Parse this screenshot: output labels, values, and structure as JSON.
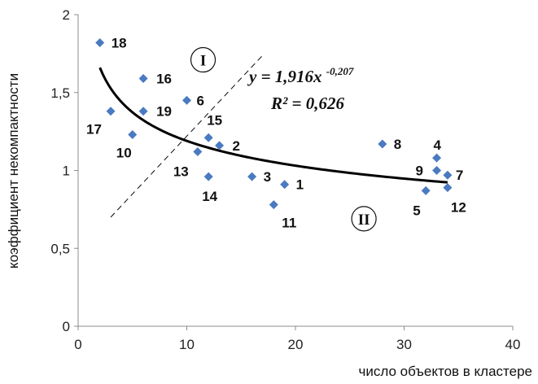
{
  "chart_data": {
    "type": "scatter",
    "xlabel": "число объектов в кластере",
    "ylabel": "коэффициент некомпактности",
    "xlim": [
      0,
      40
    ],
    "ylim": [
      0,
      2
    ],
    "x_ticks": [
      "0",
      "10",
      "20",
      "30",
      "40"
    ],
    "y_ticks": [
      "0",
      "0,5",
      "1",
      "1,5",
      "2"
    ],
    "grid": false,
    "marker_color": "#4a7ac0",
    "points": [
      {
        "label": "1",
        "x": 19,
        "y": 0.91
      },
      {
        "label": "2",
        "x": 13,
        "y": 1.16
      },
      {
        "label": "3",
        "x": 16,
        "y": 0.96
      },
      {
        "label": "4",
        "x": 33,
        "y": 1.08
      },
      {
        "label": "5",
        "x": 32,
        "y": 0.87
      },
      {
        "label": "6",
        "x": 10,
        "y": 1.45
      },
      {
        "label": "7",
        "x": 34,
        "y": 0.97
      },
      {
        "label": "8",
        "x": 28,
        "y": 1.17
      },
      {
        "label": "9",
        "x": 33,
        "y": 1.0
      },
      {
        "label": "10",
        "x": 5,
        "y": 1.23
      },
      {
        "label": "11",
        "x": 18,
        "y": 0.78
      },
      {
        "label": "12",
        "x": 34,
        "y": 0.89
      },
      {
        "label": "13",
        "x": 11,
        "y": 1.12
      },
      {
        "label": "14",
        "x": 12,
        "y": 0.96
      },
      {
        "label": "15",
        "x": 12,
        "y": 1.21
      },
      {
        "label": "16",
        "x": 6,
        "y": 1.59
      },
      {
        "label": "17",
        "x": 3,
        "y": 1.38
      },
      {
        "label": "18",
        "x": 2,
        "y": 1.82
      },
      {
        "label": "19",
        "x": 6,
        "y": 1.38
      }
    ],
    "trendline": {
      "type": "power",
      "coefficient": 1.916,
      "exponent": -0.207,
      "x_range": [
        2,
        34
      ],
      "color": "#000000"
    },
    "divider": {
      "style": "dashed",
      "color": "#000000",
      "from": [
        3,
        0.7
      ],
      "to": [
        17,
        1.74
      ]
    },
    "equation": {
      "main": "y = 1,916x",
      "superscript": "-0,207",
      "r2": "R² = 0,626"
    },
    "regions": [
      {
        "label": "I",
        "x": 11.5,
        "y": 1.71
      },
      {
        "label": "II",
        "x": 26.3,
        "y": 0.69
      }
    ]
  }
}
